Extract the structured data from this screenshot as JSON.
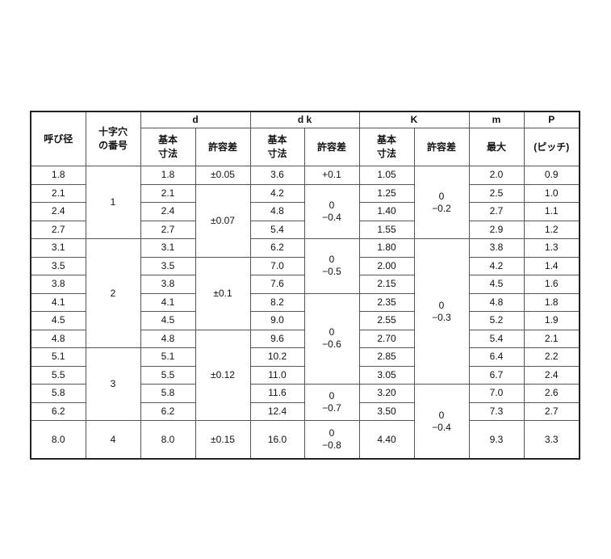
{
  "header": {
    "nominal": "呼び径",
    "cross_no": [
      "十字穴",
      "の番号"
    ],
    "d": "d",
    "dk": "d k",
    "K": "K",
    "m": "m",
    "P": "P",
    "basic": [
      "基本",
      "寸法"
    ],
    "tolerance": "許容差",
    "max": "最大",
    "pitch": "(ピッチ)"
  },
  "rows": [
    {
      "nominal": "1.8",
      "d": "1.8",
      "dk": "3.6",
      "K": "1.05",
      "m": "2.0",
      "P": "0.9"
    },
    {
      "nominal": "2.1",
      "d": "2.1",
      "dk": "4.2",
      "K": "1.25",
      "m": "2.5",
      "P": "1.0"
    },
    {
      "nominal": "2.4",
      "d": "2.4",
      "dk": "4.8",
      "K": "1.40",
      "m": "2.7",
      "P": "1.1"
    },
    {
      "nominal": "2.7",
      "d": "2.7",
      "dk": "5.4",
      "K": "1.55",
      "m": "2.9",
      "P": "1.2"
    },
    {
      "nominal": "3.1",
      "d": "3.1",
      "dk": "6.2",
      "K": "1.80",
      "m": "3.8",
      "P": "1.3"
    },
    {
      "nominal": "3.5",
      "d": "3.5",
      "dk": "7.0",
      "K": "2.00",
      "m": "4.2",
      "P": "1.4"
    },
    {
      "nominal": "3.8",
      "d": "3.8",
      "dk": "7.6",
      "K": "2.15",
      "m": "4.5",
      "P": "1.6"
    },
    {
      "nominal": "4.1",
      "d": "4.1",
      "dk": "8.2",
      "K": "2.35",
      "m": "4.8",
      "P": "1.8"
    },
    {
      "nominal": "4.5",
      "d": "4.5",
      "dk": "9.0",
      "K": "2.55",
      "m": "5.2",
      "P": "1.9"
    },
    {
      "nominal": "4.8",
      "d": "4.8",
      "dk": "9.6",
      "K": "2.70",
      "m": "5.4",
      "P": "2.1"
    },
    {
      "nominal": "5.1",
      "d": "5.1",
      "dk": "10.2",
      "K": "2.85",
      "m": "6.4",
      "P": "2.2"
    },
    {
      "nominal": "5.5",
      "d": "5.5",
      "dk": "11.0",
      "K": "3.05",
      "m": "6.7",
      "P": "2.4"
    },
    {
      "nominal": "5.8",
      "d": "5.8",
      "dk": "11.6",
      "K": "3.20",
      "m": "7.0",
      "P": "2.6"
    },
    {
      "nominal": "6.2",
      "d": "6.2",
      "dk": "12.4",
      "K": "3.50",
      "m": "7.3",
      "P": "2.7"
    },
    {
      "nominal": "8.0",
      "d": "8.0",
      "dk": "16.0",
      "K": "4.40",
      "m": "9.3",
      "P": "3.3"
    }
  ],
  "cross_no_groups": [
    {
      "value": [
        "1"
      ],
      "rows": 4
    },
    {
      "value": [
        "2"
      ],
      "rows": 6
    },
    {
      "value": [
        "3"
      ],
      "rows": 4
    },
    {
      "value": [
        "4"
      ],
      "rows": 1
    }
  ],
  "d_tol_groups": [
    {
      "value": [
        "±0.05"
      ],
      "rows": 1
    },
    {
      "value": [
        "±0.07"
      ],
      "rows": 4
    },
    {
      "value": [
        "±0.1"
      ],
      "rows": 4
    },
    {
      "value": [
        "±0.12"
      ],
      "rows": 5
    },
    {
      "value": [
        "±0.15"
      ],
      "rows": 1
    }
  ],
  "dk_tol_groups": [
    {
      "value": [
        "+0.1"
      ],
      "rows": 1
    },
    {
      "value": [
        "0",
        "−0.4"
      ],
      "rows": 3
    },
    {
      "value": [
        "0",
        "−0.5"
      ],
      "rows": 3
    },
    {
      "value": [
        "0",
        "−0.6"
      ],
      "rows": 5
    },
    {
      "value": [
        "0",
        "−0.7"
      ],
      "rows": 2
    },
    {
      "value": [
        "0",
        "−0.8"
      ],
      "rows": 1
    }
  ],
  "K_tol_groups": [
    {
      "value": [
        "0",
        "−0.2"
      ],
      "rows": 4
    },
    {
      "value": [
        "0",
        "−0.3"
      ],
      "rows": 8
    },
    {
      "value": [
        "0",
        "−0.4"
      ],
      "rows": 3
    }
  ]
}
